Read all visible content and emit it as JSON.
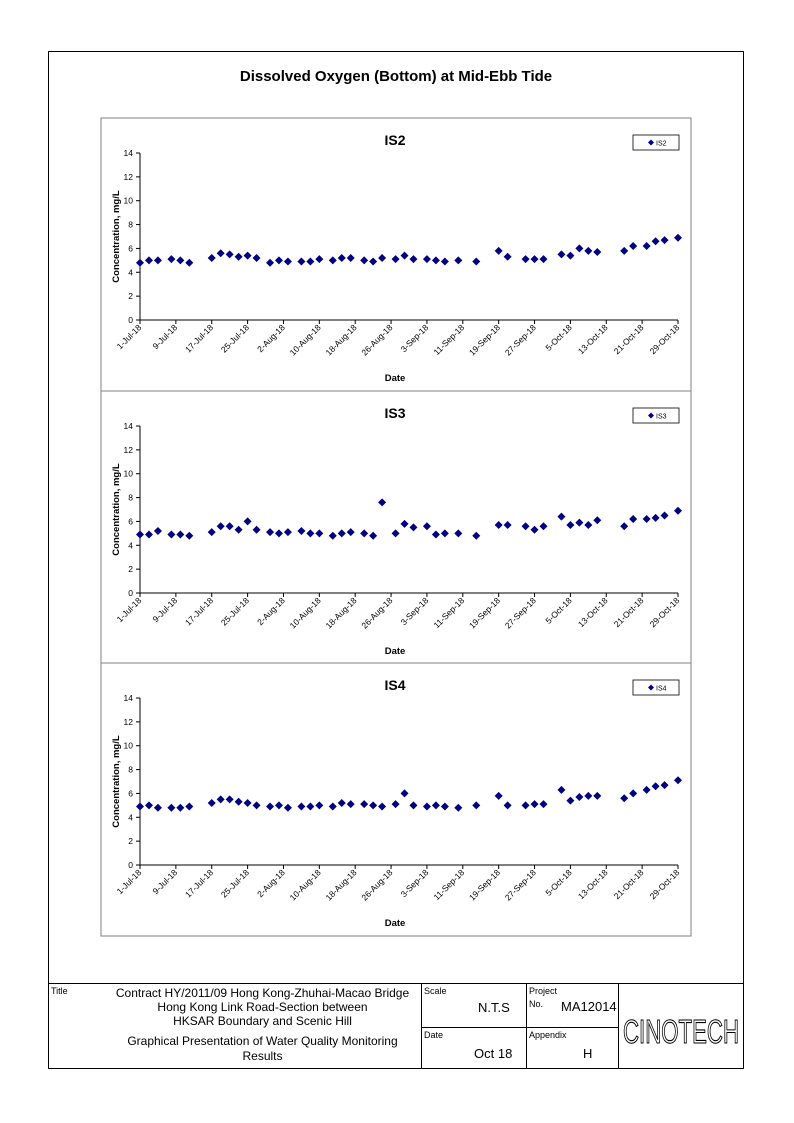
{
  "page": {
    "title": "Dissolved Oxygen (Bottom) at Mid-Ebb Tide"
  },
  "axes_common": {
    "xlabel": "Date",
    "ylabel": "Concentration, mg/L",
    "ylim": [
      0,
      14
    ],
    "y_ticks": [
      "0",
      "2",
      "4",
      "6",
      "8",
      "10",
      "12",
      "14"
    ],
    "x_ticks": [
      "1-Jul-18",
      "9-Jul-18",
      "17-Jul-18",
      "25-Jul-18",
      "2-Aug-18",
      "10-Aug-18",
      "18-Aug-18",
      "26-Aug-18",
      "3-Sep-18",
      "11-Sep-18",
      "19-Sep-18",
      "27-Sep-18",
      "5-Oct-18",
      "13-Oct-18",
      "21-Oct-18",
      "29-Oct-18"
    ],
    "marker_color": "#000080"
  },
  "chart_data": [
    {
      "type": "scatter",
      "title": "IS2",
      "legend": "top-right",
      "series": [
        {
          "name": "IS2",
          "x": [
            "2018-07-01",
            "2018-07-03",
            "2018-07-05",
            "2018-07-08",
            "2018-07-10",
            "2018-07-12",
            "2018-07-17",
            "2018-07-19",
            "2018-07-21",
            "2018-07-23",
            "2018-07-25",
            "2018-07-27",
            "2018-07-30",
            "2018-08-01",
            "2018-08-03",
            "2018-08-06",
            "2018-08-08",
            "2018-08-10",
            "2018-08-13",
            "2018-08-15",
            "2018-08-17",
            "2018-08-20",
            "2018-08-22",
            "2018-08-24",
            "2018-08-27",
            "2018-08-29",
            "2018-08-31",
            "2018-09-03",
            "2018-09-05",
            "2018-09-07",
            "2018-09-10",
            "2018-09-14",
            "2018-09-19",
            "2018-09-21",
            "2018-09-25",
            "2018-09-27",
            "2018-09-29",
            "2018-10-03",
            "2018-10-05",
            "2018-10-07",
            "2018-10-09",
            "2018-10-11",
            "2018-10-17",
            "2018-10-19",
            "2018-10-22",
            "2018-10-24",
            "2018-10-26",
            "2018-10-29"
          ],
          "y": [
            4.8,
            5.0,
            5.0,
            5.1,
            5.0,
            4.8,
            5.2,
            5.6,
            5.5,
            5.3,
            5.4,
            5.2,
            4.8,
            5.0,
            4.9,
            4.9,
            4.9,
            5.1,
            5.0,
            5.2,
            5.2,
            5.0,
            4.9,
            5.2,
            5.1,
            5.4,
            5.1,
            5.1,
            5.0,
            4.9,
            5.0,
            4.9,
            5.8,
            5.3,
            5.1,
            5.1,
            5.1,
            5.5,
            5.4,
            6.0,
            5.8,
            5.7,
            5.8,
            6.2,
            6.2,
            6.6,
            6.7,
            6.9
          ]
        }
      ]
    },
    {
      "type": "scatter",
      "title": "IS3",
      "legend": "top-right",
      "series": [
        {
          "name": "IS3",
          "x": [
            "2018-07-01",
            "2018-07-03",
            "2018-07-05",
            "2018-07-08",
            "2018-07-10",
            "2018-07-12",
            "2018-07-17",
            "2018-07-19",
            "2018-07-21",
            "2018-07-23",
            "2018-07-25",
            "2018-07-27",
            "2018-07-30",
            "2018-08-01",
            "2018-08-03",
            "2018-08-06",
            "2018-08-08",
            "2018-08-10",
            "2018-08-13",
            "2018-08-15",
            "2018-08-17",
            "2018-08-20",
            "2018-08-22",
            "2018-08-24",
            "2018-08-27",
            "2018-08-29",
            "2018-08-31",
            "2018-09-03",
            "2018-09-05",
            "2018-09-07",
            "2018-09-10",
            "2018-09-14",
            "2018-09-19",
            "2018-09-21",
            "2018-09-25",
            "2018-09-27",
            "2018-09-29",
            "2018-10-03",
            "2018-10-05",
            "2018-10-07",
            "2018-10-09",
            "2018-10-11",
            "2018-10-17",
            "2018-10-19",
            "2018-10-22",
            "2018-10-24",
            "2018-10-26",
            "2018-10-29"
          ],
          "y": [
            4.9,
            4.9,
            5.2,
            4.9,
            4.9,
            4.8,
            5.1,
            5.6,
            5.6,
            5.3,
            6.0,
            5.3,
            5.1,
            5.0,
            5.1,
            5.2,
            5.0,
            5.0,
            4.8,
            5.0,
            5.1,
            5.0,
            4.8,
            7.6,
            5.0,
            5.8,
            5.5,
            5.6,
            4.9,
            5.0,
            5.0,
            4.8,
            5.7,
            5.7,
            5.6,
            5.3,
            5.6,
            6.4,
            5.7,
            5.9,
            5.7,
            6.1,
            5.6,
            6.2,
            6.2,
            6.3,
            6.5,
            6.9
          ]
        }
      ]
    },
    {
      "type": "scatter",
      "title": "IS4",
      "legend": "top-right",
      "series": [
        {
          "name": "IS4",
          "x": [
            "2018-07-01",
            "2018-07-03",
            "2018-07-05",
            "2018-07-08",
            "2018-07-10",
            "2018-07-12",
            "2018-07-17",
            "2018-07-19",
            "2018-07-21",
            "2018-07-23",
            "2018-07-25",
            "2018-07-27",
            "2018-07-30",
            "2018-08-01",
            "2018-08-03",
            "2018-08-06",
            "2018-08-08",
            "2018-08-10",
            "2018-08-13",
            "2018-08-15",
            "2018-08-17",
            "2018-08-20",
            "2018-08-22",
            "2018-08-24",
            "2018-08-27",
            "2018-08-29",
            "2018-08-31",
            "2018-09-03",
            "2018-09-05",
            "2018-09-07",
            "2018-09-10",
            "2018-09-14",
            "2018-09-19",
            "2018-09-21",
            "2018-09-25",
            "2018-09-27",
            "2018-09-29",
            "2018-10-03",
            "2018-10-05",
            "2018-10-07",
            "2018-10-09",
            "2018-10-11",
            "2018-10-17",
            "2018-10-19",
            "2018-10-22",
            "2018-10-24",
            "2018-10-26",
            "2018-10-29"
          ],
          "y": [
            4.9,
            5.0,
            4.8,
            4.8,
            4.8,
            4.9,
            5.2,
            5.5,
            5.5,
            5.3,
            5.2,
            5.0,
            4.9,
            5.0,
            4.8,
            4.9,
            4.9,
            5.0,
            4.9,
            5.2,
            5.1,
            5.1,
            5.0,
            4.9,
            5.1,
            6.0,
            5.0,
            4.9,
            5.0,
            4.9,
            4.8,
            5.0,
            5.8,
            5.0,
            5.0,
            5.1,
            5.1,
            6.3,
            5.4,
            5.7,
            5.8,
            5.8,
            5.6,
            6.0,
            6.3,
            6.6,
            6.7,
            7.1
          ]
        }
      ]
    }
  ],
  "title_block": {
    "title_label": "Title",
    "title_line1": "Contract HY/2011/09 Hong Kong-Zhuhai-Macao Bridge",
    "title_line2": "Hong Kong Link Road-Section between",
    "title_line3": "HKSAR Boundary and Scenic Hill",
    "subtitle_line1": "Graphical Presentation of Water Quality Monitoring",
    "subtitle_line2": "Results",
    "scale_label": "Scale",
    "scale_value": "N.T.S",
    "project_label": "Project",
    "no_label": "No.",
    "project_no": "MA12014",
    "date_label": "Date",
    "date_value": "Oct 18",
    "appendix_label": "Appendix",
    "appendix_value": "H",
    "logo_text": "CINOTECH"
  }
}
